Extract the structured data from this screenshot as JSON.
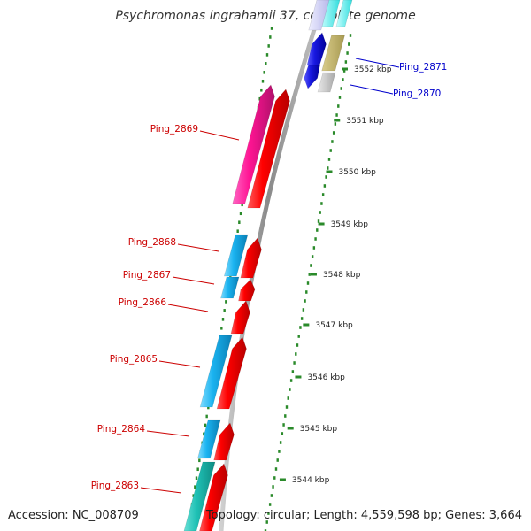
{
  "title": "Psychromonas ingrahamii 37, complete genome",
  "accession_text": "Accession: NC_008709",
  "summary_text": "Topology: circular; Length: 4,559,598 bp; Genes: 3,664",
  "colors": {
    "label_reverse": "#cc0000",
    "label_forward": "#0000cc",
    "scale_ticks": "#2a8a2a",
    "backbone": "#9a9a9a"
  },
  "scale_ticks": [
    {
      "label": "3552 kbp"
    },
    {
      "label": "3551 kbp"
    },
    {
      "label": "3550 kbp"
    },
    {
      "label": "3549 kbp"
    },
    {
      "label": "3548 kbp"
    },
    {
      "label": "3547 kbp"
    },
    {
      "label": "3546 kbp"
    },
    {
      "label": "3545 kbp"
    },
    {
      "label": "3544 kbp"
    }
  ],
  "gene_labels": [
    {
      "id": "ping-2871",
      "text": "Ping_2871",
      "strand": "forward"
    },
    {
      "id": "ping-2870",
      "text": "Ping_2870",
      "strand": "forward"
    },
    {
      "id": "ping-2869",
      "text": "Ping_2869",
      "strand": "reverse"
    },
    {
      "id": "ping-2868",
      "text": "Ping_2868",
      "strand": "reverse"
    },
    {
      "id": "ping-2867",
      "text": "Ping_2867",
      "strand": "reverse"
    },
    {
      "id": "ping-2866",
      "text": "Ping_2866",
      "strand": "reverse"
    },
    {
      "id": "ping-2865",
      "text": "Ping_2865",
      "strand": "reverse"
    },
    {
      "id": "ping-2864",
      "text": "Ping_2864",
      "strand": "reverse"
    },
    {
      "id": "ping-2863",
      "text": "Ping_2863",
      "strand": "reverse"
    }
  ]
}
